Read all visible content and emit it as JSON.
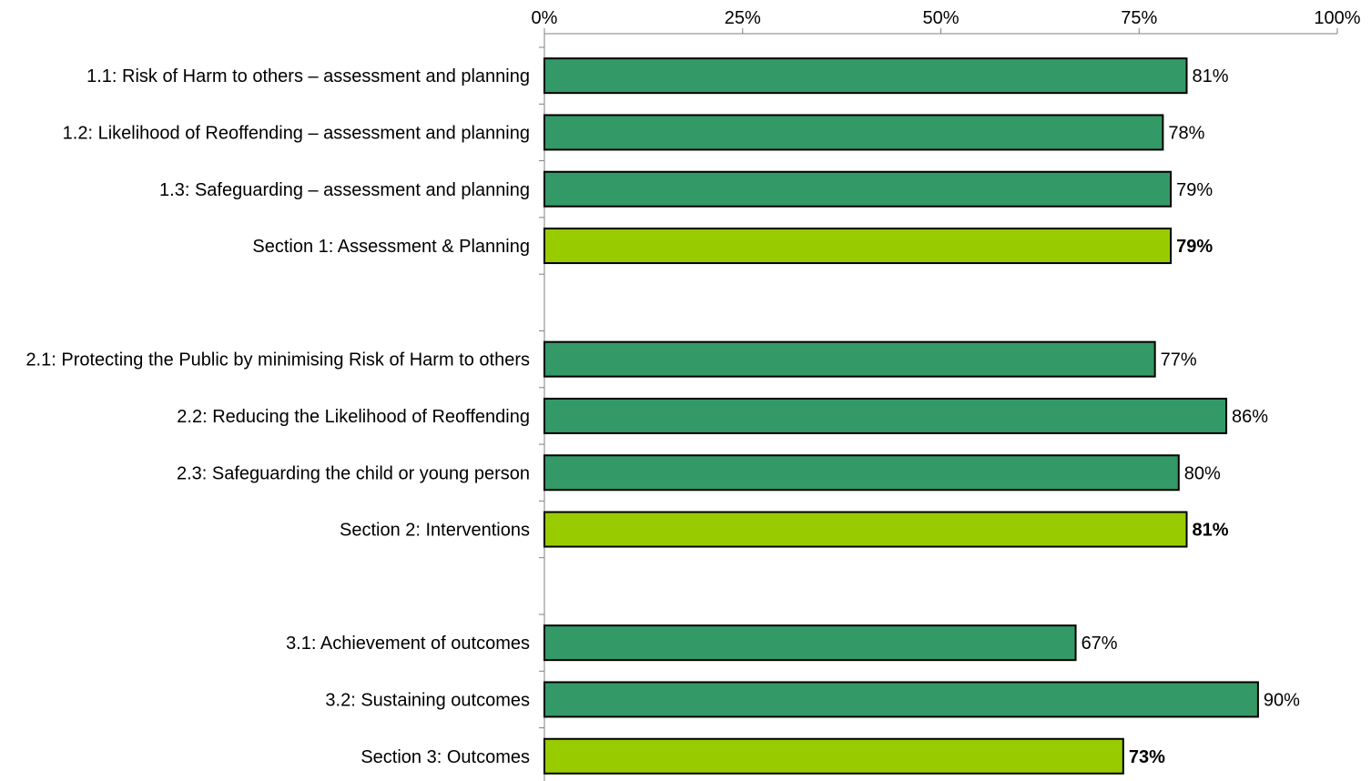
{
  "chart_data": {
    "type": "bar",
    "orientation": "horizontal",
    "title": "",
    "xlabel": "",
    "ylabel": "",
    "xlim": [
      0,
      1
    ],
    "ticks": [
      "0%",
      "25%",
      "50%",
      "75%",
      "100%"
    ],
    "tick_values": [
      0,
      0.25,
      0.5,
      0.75,
      1.0
    ],
    "grid": false,
    "legend": "none",
    "categories": [
      "1.1: Risk of Harm to others – assessment and planning",
      "1.2: Likelihood of Reoffending – assessment and planning",
      "1.3: Safeguarding – assessment and planning",
      "Section 1: Assessment & Planning",
      "",
      "2.1: Protecting the Public by minimising Risk of Harm to others",
      "2.2: Reducing the Likelihood of Reoffending",
      "2.3: Safeguarding the child or young person",
      "Section 2: Interventions",
      "",
      "3.1: Achievement of outcomes",
      "3.2: Sustaining outcomes",
      "Section 3: Outcomes"
    ],
    "values": [
      0.81,
      0.78,
      0.79,
      0.79,
      null,
      0.77,
      0.86,
      0.8,
      0.81,
      null,
      0.67,
      0.9,
      0.73
    ],
    "value_labels": [
      "81%",
      "78%",
      "79%",
      "79%",
      "",
      "77%",
      "86%",
      "80%",
      "81%",
      "",
      "67%",
      "90%",
      "73%"
    ],
    "is_section": [
      false,
      false,
      false,
      true,
      false,
      false,
      false,
      false,
      true,
      false,
      false,
      false,
      true
    ],
    "colors": {
      "item": "#339966",
      "section": "#99CC00",
      "outline": "#000000",
      "axis": "#808080"
    }
  }
}
